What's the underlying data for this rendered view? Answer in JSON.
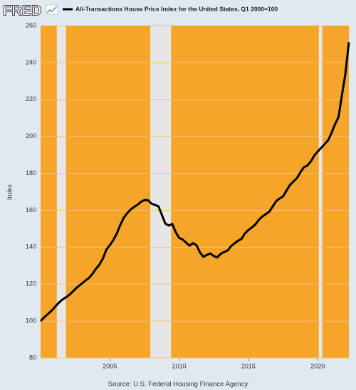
{
  "chart_data": {
    "type": "line",
    "logo": "FRED",
    "y_label": "Index",
    "source": "Source: U.S. Federal Housing Finance Agency",
    "xlim": [
      2000,
      2022.25
    ],
    "ylim": [
      80,
      260
    ],
    "xticks": [
      2005,
      2010,
      2015,
      2020
    ],
    "yticks": [
      80,
      100,
      120,
      140,
      160,
      180,
      200,
      220,
      240,
      260
    ],
    "grid": true,
    "background": "#f4a52a",
    "recession_color": "#e6e6e6",
    "recessions": [
      [
        2001.17,
        2001.83
      ],
      [
        2007.92,
        2009.42
      ],
      [
        2020.08,
        2020.33
      ]
    ],
    "x": [
      2000,
      2000.25,
      2000.5,
      2000.75,
      2001,
      2001.25,
      2001.5,
      2001.75,
      2002,
      2002.25,
      2002.5,
      2002.75,
      2003,
      2003.25,
      2003.5,
      2003.75,
      2004,
      2004.25,
      2004.5,
      2004.75,
      2005,
      2005.25,
      2005.5,
      2005.75,
      2006,
      2006.25,
      2006.5,
      2006.75,
      2007,
      2007.25,
      2007.5,
      2007.75,
      2008,
      2008.25,
      2008.5,
      2008.75,
      2009,
      2009.25,
      2009.5,
      2009.75,
      2010,
      2010.25,
      2010.5,
      2010.75,
      2011,
      2011.25,
      2011.5,
      2011.75,
      2012,
      2012.25,
      2012.5,
      2012.75,
      2013,
      2013.25,
      2013.5,
      2013.75,
      2014,
      2014.25,
      2014.5,
      2014.75,
      2015,
      2015.25,
      2015.5,
      2015.75,
      2016,
      2016.25,
      2016.5,
      2016.75,
      2017,
      2017.25,
      2017.5,
      2017.75,
      2018,
      2018.25,
      2018.5,
      2018.75,
      2019,
      2019.25,
      2019.5,
      2019.75,
      2020,
      2020.25,
      2020.5,
      2020.75,
      2021,
      2021.25,
      2021.5,
      2021.75,
      2022,
      2022.25
    ],
    "series": [
      {
        "name": "All-Transactions House Price Index for the United States, Q1 2000=100",
        "color": "#000000",
        "values": [
          100,
          101.9,
          103.6,
          105.3,
          107.3,
          109.4,
          111.2,
          112.5,
          113.7,
          115.4,
          117.3,
          119.0,
          120.4,
          122.0,
          123.4,
          125.6,
          128.4,
          130.6,
          133.9,
          138.7,
          141.1,
          143.9,
          147.4,
          152.0,
          155.9,
          158.4,
          160.4,
          161.8,
          163.0,
          164.6,
          165.5,
          165.4,
          163.6,
          162.9,
          162.2,
          157.6,
          152.8,
          151.7,
          152.6,
          148.2,
          145.0,
          144.2,
          142.5,
          140.8,
          142.2,
          141.1,
          137.2,
          134.8,
          135.8,
          136.6,
          135.2,
          134.5,
          136.4,
          137.4,
          138.2,
          140.6,
          142.1,
          143.5,
          144.5,
          147.5,
          149.3,
          150.7,
          152.3,
          154.8,
          156.6,
          157.9,
          159.2,
          162.0,
          164.9,
          166.4,
          167.5,
          170.7,
          173.7,
          175.6,
          177.4,
          180.5,
          183.3,
          184.2,
          186.4,
          189.6,
          191.8,
          193.8,
          195.8,
          197.9,
          201.9,
          206.6,
          210.4,
          222.4,
          234.0,
          251.0
        ]
      }
    ]
  }
}
